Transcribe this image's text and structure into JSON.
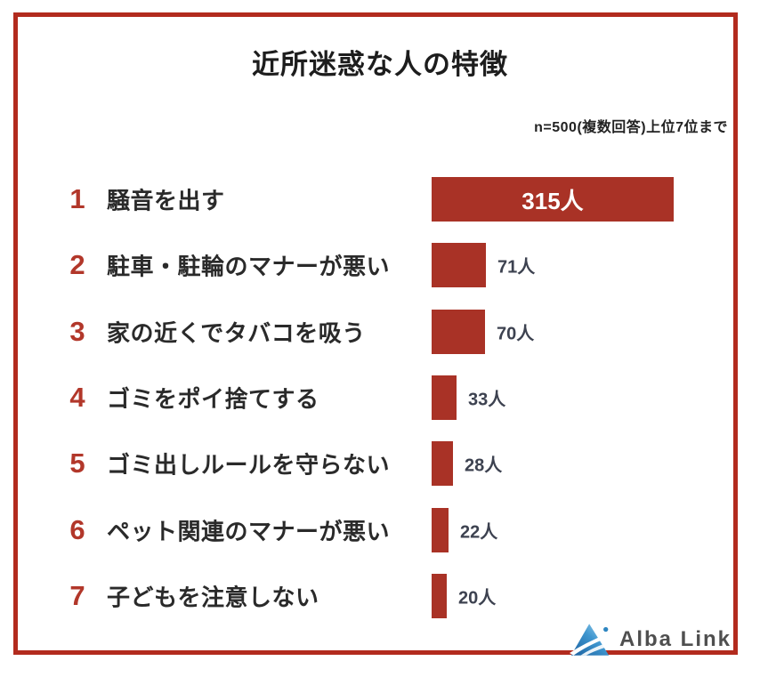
{
  "title": "近所迷惑な人の特徴",
  "note": "n=500(複数回答)上位7位まで",
  "logo": {
    "text": "Alba Link"
  },
  "colors": {
    "bar": "#a93226",
    "frame_border": "#b22b1e",
    "rank_number": "#b2372a",
    "value_label": "#3d4250",
    "bar_value_inside": "#ffffff"
  },
  "chart_data": {
    "type": "bar",
    "orientation": "horizontal",
    "title": "近所迷惑な人の特徴",
    "subtitle": "n=500(複数回答)上位7位まで",
    "unit": "人",
    "max_value": 315,
    "legend": false,
    "grid": false,
    "categories": [
      "騒音を出す",
      "駐車・駐輪のマナーが悪い",
      "家の近くでタバコを吸う",
      "ゴミをポイ捨てする",
      "ゴミ出しルールを守らない",
      "ペット関連のマナーが悪い",
      "子どもを注意しない"
    ],
    "values": [
      315,
      71,
      70,
      33,
      28,
      22,
      20
    ],
    "rows": [
      {
        "rank": "1",
        "label": "騒音を出す",
        "value": 315,
        "value_label": "315人",
        "value_label_position": "inside"
      },
      {
        "rank": "2",
        "label": "駐車・駐輪のマナーが悪い",
        "value": 71,
        "value_label": "71人",
        "value_label_position": "outside"
      },
      {
        "rank": "3",
        "label": "家の近くでタバコを吸う",
        "value": 70,
        "value_label": "70人",
        "value_label_position": "outside"
      },
      {
        "rank": "4",
        "label": "ゴミをポイ捨てする",
        "value": 33,
        "value_label": "33人",
        "value_label_position": "outside"
      },
      {
        "rank": "5",
        "label": "ゴミ出しルールを守らない",
        "value": 28,
        "value_label": "28人",
        "value_label_position": "outside"
      },
      {
        "rank": "6",
        "label": "ペット関連のマナーが悪い",
        "value": 22,
        "value_label": "22人",
        "value_label_position": "outside"
      },
      {
        "rank": "7",
        "label": "子どもを注意しない",
        "value": 20,
        "value_label": "20人",
        "value_label_position": "outside"
      }
    ]
  }
}
